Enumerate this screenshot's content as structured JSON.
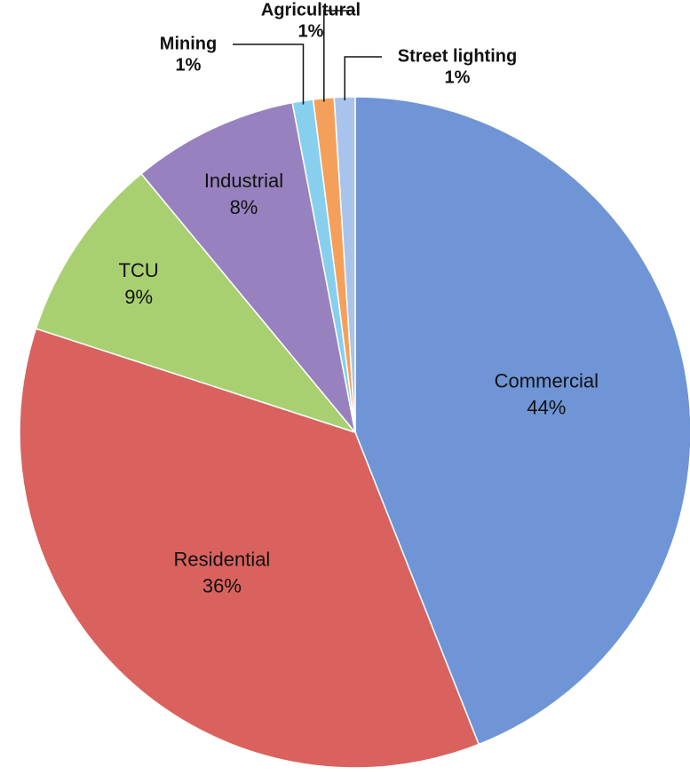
{
  "chart_data": {
    "type": "pie",
    "categories": [
      "Commercial",
      "Residential",
      "TCU",
      "Industrial",
      "Mining",
      "Agricultural",
      "Street lighting"
    ],
    "values": [
      44,
      36,
      9,
      8,
      1,
      1,
      1
    ],
    "value_labels": [
      "44%",
      "36%",
      "9%",
      "8%",
      "1%",
      "1%",
      "1%"
    ],
    "colors": [
      "#6f95d6",
      "#d9625e",
      "#a9d070",
      "#9782bf",
      "#86d0ee",
      "#f5a05a",
      "#a9c4ec"
    ]
  }
}
